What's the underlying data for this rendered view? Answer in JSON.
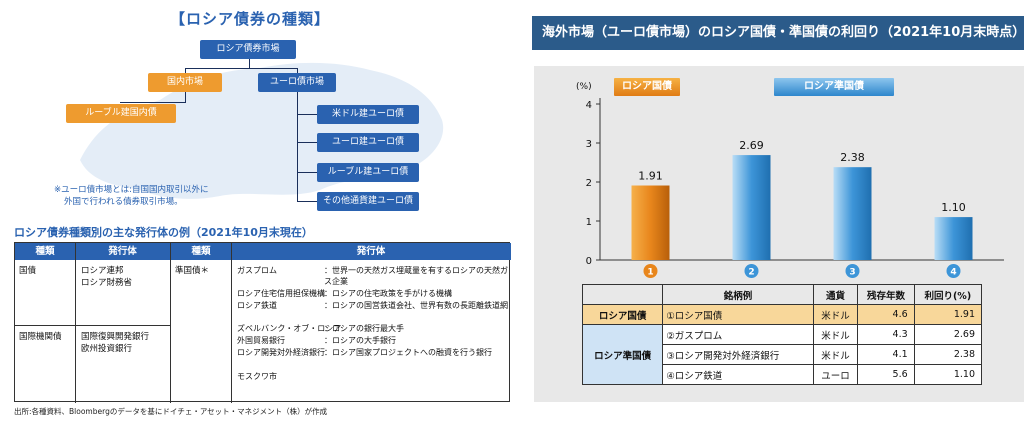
{
  "left": {
    "title": "【ロシア債券の種類】",
    "tree": {
      "root": "ロシア債券市場",
      "domestic": "国内市場",
      "euro": "ユーロ債市場",
      "ruble": "ルーブル建国内債",
      "euro_children": [
        "米ドル建ユーロ債",
        "ユーロ建ユーロ債",
        "ルーブル建ユーロ債",
        "その他通貨建ユーロ債"
      ]
    },
    "note_line1": "※ユーロ債市場とは:自国国内取引以外に",
    "note_line2": "外国で行われる債券取引市場。",
    "issuers_title": "ロシア債券種類別の主な発行体の例（2021年10月末現在）",
    "issuers_headers": [
      "種類",
      "発行体",
      "種類",
      "発行体"
    ],
    "issuers_left": [
      {
        "type": "国債",
        "issuers": [
          "ロシア連邦",
          "ロシア財務省"
        ]
      },
      {
        "type": "国際機関債",
        "issuers": [
          "国際復興開発銀行",
          "欧州投資銀行"
        ]
      }
    ],
    "quasi_type": "準国債＊",
    "quasi_entries": [
      {
        "org": "ガスプロム",
        "desc": "：世界一の天然ガス埋蔵量を有するロシアの天然ガス企業"
      },
      {
        "org": "ロシア住宅信用担保機構",
        "desc": "：ロシアの住宅政策を手がける機構"
      },
      {
        "org": "ロシア鉄道",
        "desc": "：ロシアの国営鉄道会社、世界有数の長距離鉄道網"
      },
      {
        "org": "ズベルバンク・オブ・ロシア",
        "desc": "：ロシアの銀行最大手"
      },
      {
        "org": "外国貿易銀行",
        "desc": "：ロシアの大手銀行"
      },
      {
        "org": "ロシア開発対外経済銀行",
        "desc": "：ロシア国家プロジェクトへの融資を行う銀行"
      },
      {
        "org": "モスクワ市",
        "desc": ""
      }
    ],
    "source": "出所:各種資料、Bloombergのデータを基にドイチェ・アセット・マネジメント（株）が作成"
  },
  "right": {
    "title": "海外市場（ユーロ債市場）のロシア国債・準国債の利回り（2021年10月末時点）",
    "unit": "(%)",
    "legend_gov": "ロシア国債",
    "legend_quasi": "ロシア準国債",
    "colors": {
      "gov": "#e8861c",
      "quasi": "#3d95d8",
      "header": "#2b5b8a"
    },
    "table_headers": [
      "銘柄例",
      "通貨",
      "残存年数",
      "利回り(%)"
    ],
    "table_gov_label": "ロシア国債",
    "table_quasi_label": "ロシア準国債",
    "table_rows": [
      {
        "name": "①ロシア国債",
        "currency": "米ドル",
        "years": "4.6",
        "yield": "1.91"
      },
      {
        "name": "②ガスプロム",
        "currency": "米ドル",
        "years": "4.3",
        "yield": "2.69"
      },
      {
        "name": "③ロシア開発対外経済銀行",
        "currency": "米ドル",
        "years": "4.1",
        "yield": "2.38"
      },
      {
        "name": "④ロシア鉄道",
        "currency": "ユーロ",
        "years": "5.6",
        "yield": "1.10"
      }
    ]
  },
  "chart_data": {
    "type": "bar",
    "categories": [
      "1",
      "2",
      "3",
      "4"
    ],
    "values": [
      1.91,
      2.69,
      2.38,
      1.1
    ],
    "value_labels": [
      "1.91",
      "2.69",
      "2.38",
      "1.10"
    ],
    "series_group": [
      "gov",
      "quasi",
      "quasi",
      "quasi"
    ],
    "ylabel": "(%)",
    "ylim": [
      0,
      4
    ],
    "yticks": [
      0,
      1,
      2,
      3,
      4
    ],
    "grid": false,
    "legend": "top"
  }
}
